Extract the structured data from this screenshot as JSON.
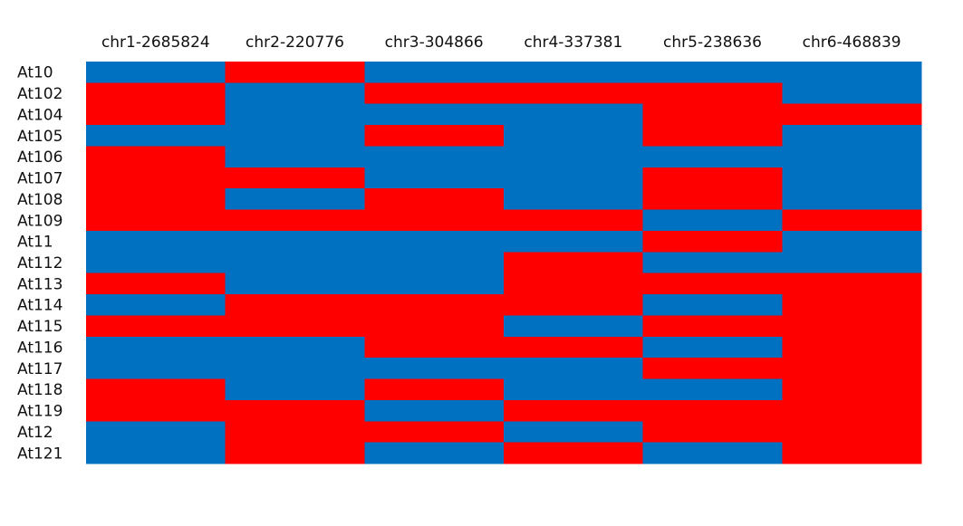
{
  "chart_data": {
    "type": "heatmap",
    "columns": [
      "chr1-2685824",
      "chr2-220776",
      "chr3-304866",
      "chr4-337381",
      "chr5-238636",
      "chr6-468839"
    ],
    "rows": [
      "At10",
      "At102",
      "At104",
      "At105",
      "At106",
      "At107",
      "At108",
      "At109",
      "At11",
      "At112",
      "At113",
      "At114",
      "At115",
      "At116",
      "At117",
      "At118",
      "At119",
      "At12",
      "At121"
    ],
    "values": [
      [
        "B",
        "R",
        "B",
        "B",
        "B",
        "B"
      ],
      [
        "R",
        "B",
        "R",
        "R",
        "R",
        "B"
      ],
      [
        "R",
        "B",
        "B",
        "B",
        "R",
        "R"
      ],
      [
        "B",
        "B",
        "R",
        "B",
        "R",
        "B"
      ],
      [
        "R",
        "B",
        "B",
        "B",
        "B",
        "B"
      ],
      [
        "R",
        "R",
        "B",
        "B",
        "R",
        "B"
      ],
      [
        "R",
        "B",
        "R",
        "B",
        "R",
        "B"
      ],
      [
        "R",
        "R",
        "R",
        "R",
        "B",
        "R"
      ],
      [
        "B",
        "B",
        "B",
        "B",
        "R",
        "B"
      ],
      [
        "B",
        "B",
        "B",
        "R",
        "B",
        "B"
      ],
      [
        "R",
        "B",
        "B",
        "R",
        "R",
        "R"
      ],
      [
        "B",
        "R",
        "R",
        "R",
        "B",
        "R"
      ],
      [
        "R",
        "R",
        "R",
        "B",
        "R",
        "R"
      ],
      [
        "B",
        "B",
        "R",
        "R",
        "B",
        "R"
      ],
      [
        "B",
        "B",
        "B",
        "B",
        "R",
        "R"
      ],
      [
        "R",
        "B",
        "R",
        "B",
        "B",
        "R"
      ],
      [
        "R",
        "R",
        "B",
        "R",
        "R",
        "R"
      ],
      [
        "B",
        "R",
        "R",
        "B",
        "R",
        "R"
      ],
      [
        "B",
        "R",
        "B",
        "R",
        "B",
        "R"
      ]
    ],
    "colors": {
      "R": "#ff0000",
      "B": "#0070c0"
    },
    "title": "",
    "legend": false
  }
}
